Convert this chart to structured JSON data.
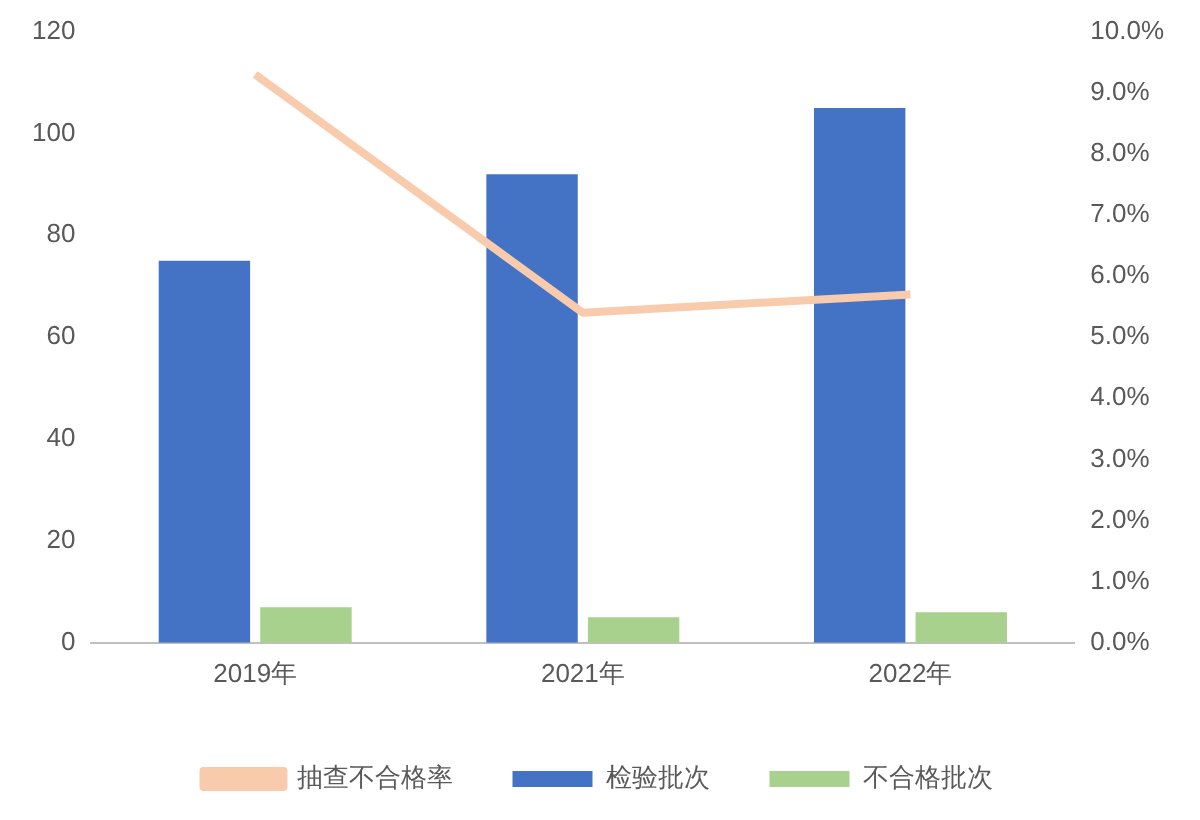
{
  "chart_data": {
    "type": "bar",
    "categories": [
      "2019年",
      "2021年",
      "2022年"
    ],
    "series": [
      {
        "name": "检验批次",
        "color": "#4472c4",
        "values": [
          75,
          92,
          105
        ]
      },
      {
        "name": "不合格批次",
        "color": "#a9d18e",
        "values": [
          7,
          5,
          6
        ]
      },
      {
        "name": "抽查不合格率",
        "color": "#f8cbad",
        "type": "line",
        "axis": "y2",
        "values": [
          9.3,
          5.4,
          5.7
        ]
      }
    ],
    "ylim": [
      0,
      120
    ],
    "yticks": [
      0,
      20,
      40,
      60,
      80,
      100,
      120
    ],
    "y2lim": [
      0,
      10
    ],
    "y2ticks": [
      {
        "value": 0,
        "label": "0.0%"
      },
      {
        "value": 1,
        "label": "1.0%"
      },
      {
        "value": 2,
        "label": "2.0%"
      },
      {
        "value": 3,
        "label": "3.0%"
      },
      {
        "value": 4,
        "label": "4.0%"
      },
      {
        "value": 5,
        "label": "5.0%"
      },
      {
        "value": 6,
        "label": "6.0%"
      },
      {
        "value": 7,
        "label": "7.0%"
      },
      {
        "value": 8,
        "label": "8.0%"
      },
      {
        "value": 9,
        "label": "9.0%"
      },
      {
        "value": 10,
        "label": "10.0%"
      }
    ],
    "grid": false,
    "legend": "bottom",
    "marker": "none"
  }
}
